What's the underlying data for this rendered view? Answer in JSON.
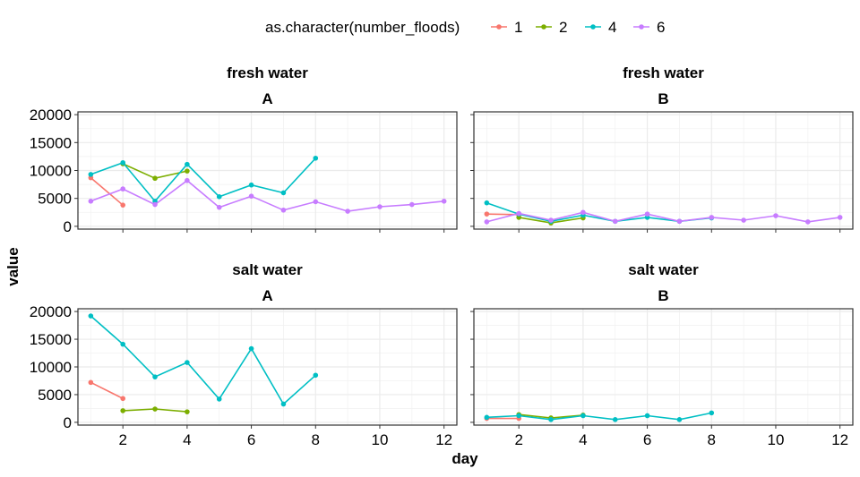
{
  "legend": {
    "title": "as.character(number_floods)",
    "entries": [
      {
        "label": "1",
        "color": "#F8766D"
      },
      {
        "label": "2",
        "color": "#7CAE00"
      },
      {
        "label": "4",
        "color": "#00BFC4"
      },
      {
        "label": "6",
        "color": "#C77CFF"
      }
    ]
  },
  "chart_data": {
    "type": "line",
    "xlabel": "day",
    "ylabel": "value",
    "xlim": [
      0.6,
      12.4
    ],
    "ylim": [
      -500,
      20500
    ],
    "x_ticks": [
      2,
      4,
      6,
      8,
      10,
      12
    ],
    "y_ticks": [
      0,
      5000,
      10000,
      15000,
      20000
    ],
    "y_tick_labels": [
      "0",
      "5000",
      "10000",
      "15000",
      "20000"
    ],
    "grid": true,
    "legend_position": "top",
    "panels": [
      {
        "strip_top": "fresh water",
        "strip_bottom": "A",
        "series": [
          {
            "name": "1",
            "color": "#F8766D",
            "points": [
              [
                1,
                8700
              ],
              [
                2,
                3800
              ]
            ]
          },
          {
            "name": "2",
            "color": "#7CAE00",
            "points": [
              [
                2,
                11200
              ],
              [
                3,
                8600
              ],
              [
                4,
                9900
              ]
            ]
          },
          {
            "name": "4",
            "color": "#00BFC4",
            "points": [
              [
                1,
                9300
              ],
              [
                2,
                11400
              ],
              [
                3,
                4500
              ],
              [
                4,
                11100
              ],
              [
                5,
                5300
              ],
              [
                6,
                7400
              ],
              [
                7,
                6000
              ],
              [
                8,
                12200
              ]
            ]
          },
          {
            "name": "6",
            "color": "#C77CFF",
            "points": [
              [
                1,
                4500
              ],
              [
                2,
                6700
              ],
              [
                3,
                3900
              ],
              [
                4,
                8200
              ],
              [
                5,
                3400
              ],
              [
                6,
                5400
              ],
              [
                7,
                2900
              ],
              [
                8,
                4400
              ],
              [
                9,
                2700
              ],
              [
                10,
                3500
              ],
              [
                11,
                3900
              ],
              [
                12,
                4500
              ]
            ]
          }
        ]
      },
      {
        "strip_top": "fresh water",
        "strip_bottom": "B",
        "series": [
          {
            "name": "1",
            "color": "#F8766D",
            "points": [
              [
                1,
                2200
              ],
              [
                2,
                2100
              ]
            ]
          },
          {
            "name": "2",
            "color": "#7CAE00",
            "points": [
              [
                2,
                1600
              ],
              [
                3,
                600
              ],
              [
                4,
                1500
              ]
            ]
          },
          {
            "name": "4",
            "color": "#00BFC4",
            "points": [
              [
                1,
                4200
              ],
              [
                2,
                2200
              ],
              [
                3,
                900
              ],
              [
                4,
                2000
              ],
              [
                5,
                900
              ],
              [
                6,
                1600
              ],
              [
                7,
                900
              ],
              [
                8,
                1500
              ]
            ]
          },
          {
            "name": "6",
            "color": "#C77CFF",
            "points": [
              [
                1,
                800
              ],
              [
                2,
                2300
              ],
              [
                3,
                1100
              ],
              [
                4,
                2500
              ],
              [
                5,
                900
              ],
              [
                6,
                2200
              ],
              [
                7,
                900
              ],
              [
                8,
                1600
              ],
              [
                9,
                1100
              ],
              [
                10,
                1900
              ],
              [
                11,
                800
              ],
              [
                12,
                1600
              ]
            ]
          }
        ]
      },
      {
        "strip_top": "salt water",
        "strip_bottom": "A",
        "series": [
          {
            "name": "1",
            "color": "#F8766D",
            "points": [
              [
                1,
                7200
              ],
              [
                2,
                4300
              ]
            ]
          },
          {
            "name": "2",
            "color": "#7CAE00",
            "points": [
              [
                2,
                2100
              ],
              [
                3,
                2400
              ],
              [
                4,
                1900
              ]
            ]
          },
          {
            "name": "4",
            "color": "#00BFC4",
            "points": [
              [
                1,
                19200
              ],
              [
                2,
                14100
              ],
              [
                3,
                8200
              ],
              [
                4,
                10800
              ],
              [
                5,
                4200
              ],
              [
                6,
                13300
              ],
              [
                7,
                3300
              ],
              [
                8,
                8500
              ]
            ]
          }
        ]
      },
      {
        "strip_top": "salt water",
        "strip_bottom": "B",
        "series": [
          {
            "name": "1",
            "color": "#F8766D",
            "points": [
              [
                1,
                700
              ],
              [
                2,
                700
              ]
            ]
          },
          {
            "name": "2",
            "color": "#7CAE00",
            "points": [
              [
                2,
                1400
              ],
              [
                3,
                800
              ],
              [
                4,
                1300
              ]
            ]
          },
          {
            "name": "4",
            "color": "#00BFC4",
            "points": [
              [
                1,
                900
              ],
              [
                2,
                1200
              ],
              [
                3,
                500
              ],
              [
                4,
                1200
              ],
              [
                5,
                500
              ],
              [
                6,
                1200
              ],
              [
                7,
                500
              ],
              [
                8,
                1700
              ]
            ]
          }
        ]
      }
    ]
  }
}
